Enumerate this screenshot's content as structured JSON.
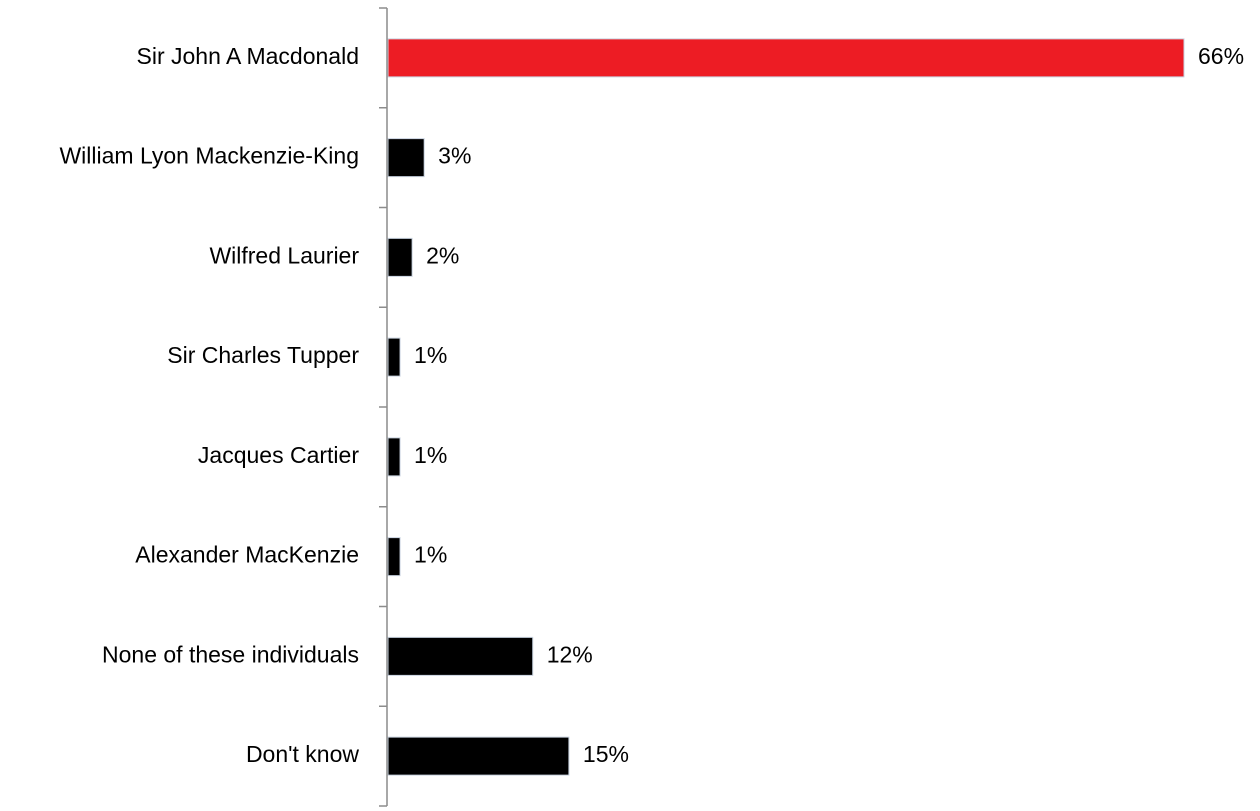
{
  "chart_data": {
    "type": "bar",
    "orientation": "horizontal",
    "categories": [
      "Sir John A Macdonald",
      "William Lyon Mackenzie-King",
      "Wilfred Laurier",
      "Sir Charles Tupper",
      "Jacques Cartier",
      "Alexander MacKenzie",
      "None of these individuals",
      "Don't know"
    ],
    "values": [
      66,
      3,
      2,
      1,
      1,
      1,
      12,
      15
    ],
    "value_labels": [
      "66%",
      "3%",
      "2%",
      "1%",
      "1%",
      "1%",
      "12%",
      "15%"
    ],
    "title": "",
    "xlabel": "",
    "ylabel": "",
    "xlim": [
      0,
      66
    ],
    "grid": false,
    "legend": "none",
    "highlight_index": 0,
    "colors": {
      "highlight": "#ed1c24",
      "default": "#000000",
      "bar_border": "#c9d3e0",
      "axis": "#8c8c8c"
    }
  }
}
